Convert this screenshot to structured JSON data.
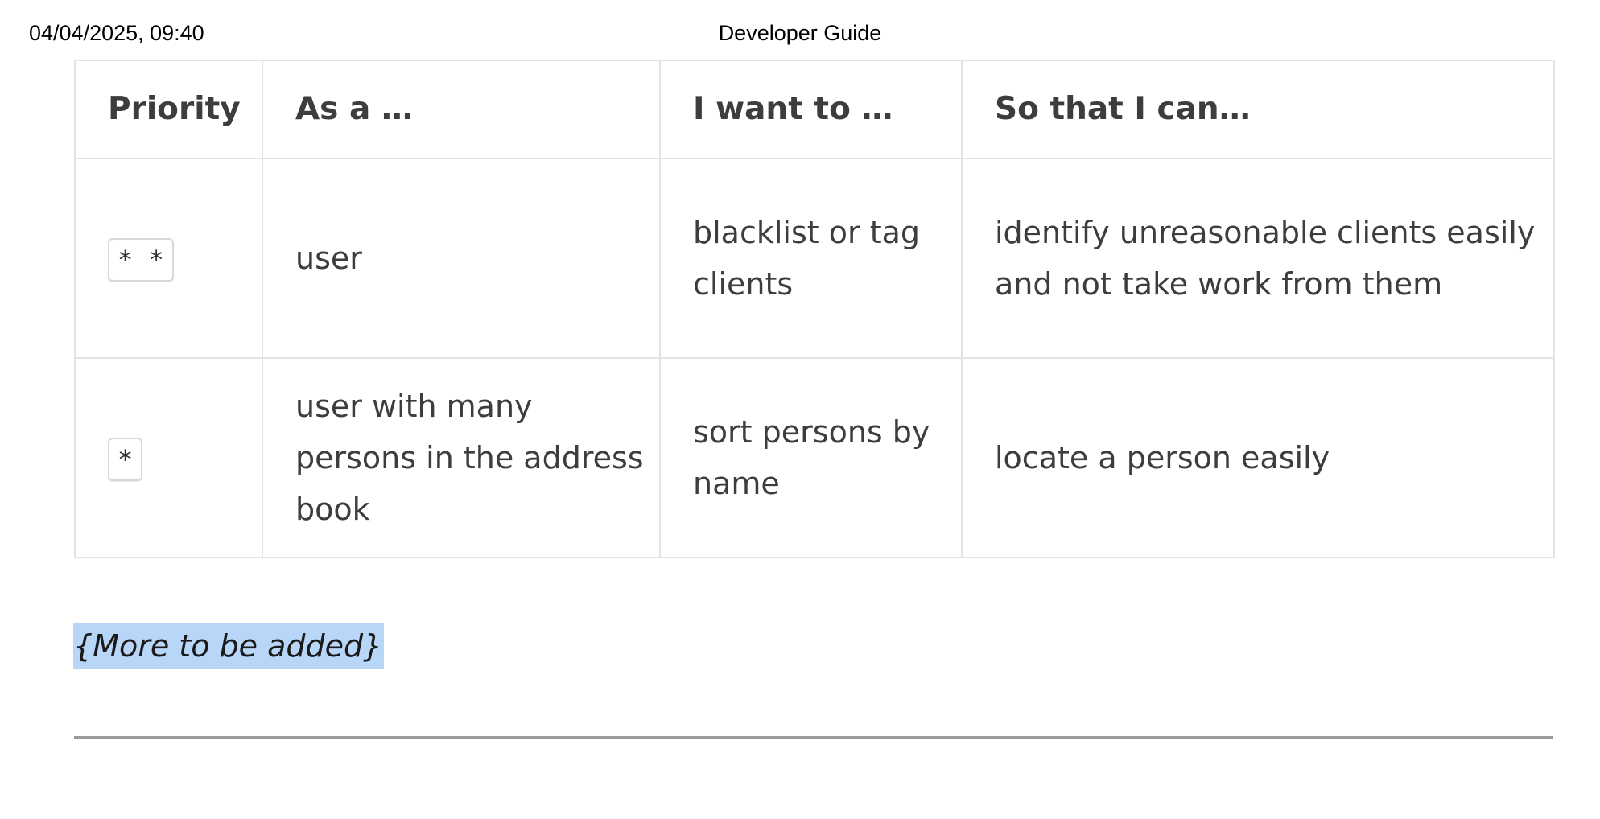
{
  "header": {
    "datetime": "04/04/2025, 09:40",
    "title": "Developer Guide"
  },
  "table": {
    "headers": [
      "Priority",
      "As a …",
      "I want to …",
      "So that I can…"
    ],
    "rows": [
      {
        "priority": "* *",
        "as_a": "user",
        "want": "blacklist or tag clients",
        "so_that": "identify unreasonable clients easily and not take work from them"
      },
      {
        "priority": "*",
        "as_a": "user with many persons in the address book",
        "want": "sort persons by name",
        "so_that": "locate a person easily"
      }
    ]
  },
  "note": "{More to be added}"
}
